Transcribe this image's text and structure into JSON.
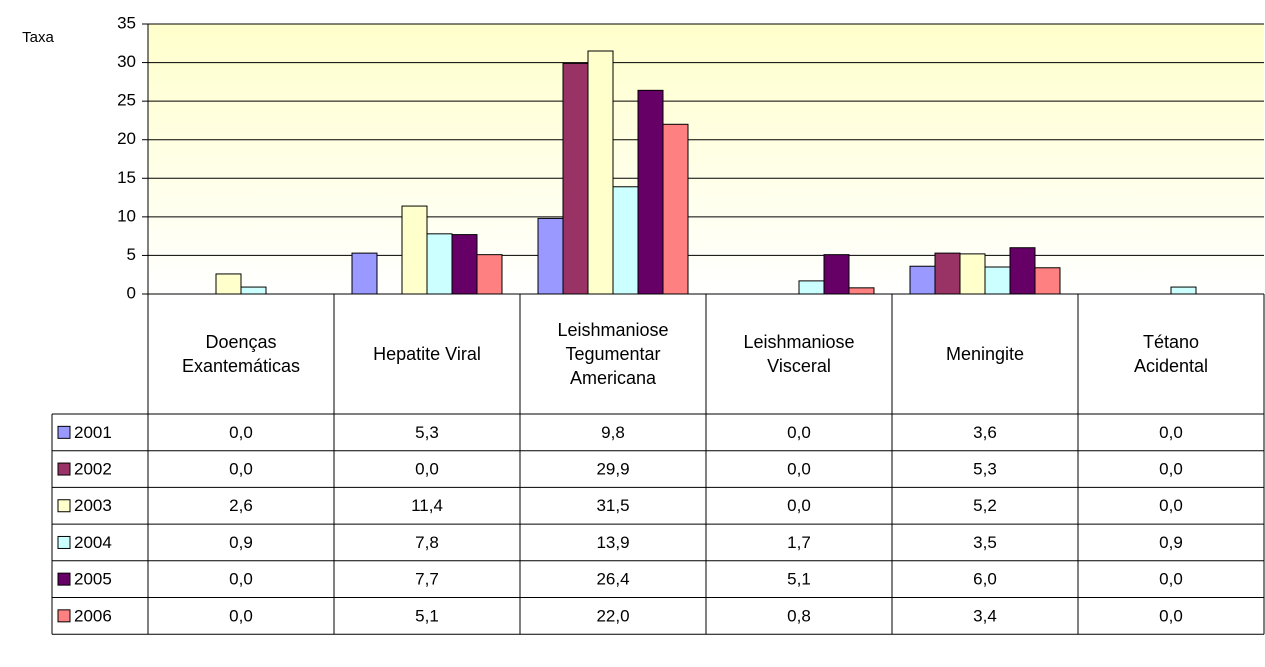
{
  "chart_data": {
    "type": "bar",
    "y_label": "Taxa",
    "categories": [
      "Doenças Exantemáticas",
      "Hepatite Viral",
      "Leishmaniose Tegumentar Americana",
      "Leishmaniose Visceral",
      "Meningite",
      "Tétano Acidental"
    ],
    "series": [
      {
        "name": "2001",
        "color": "#9999ff",
        "values": [
          0.0,
          5.3,
          9.8,
          0.0,
          3.6,
          0.0
        ],
        "value_labels": [
          "0,0",
          "5,3",
          "9,8",
          "0,0",
          "3,6",
          "0,0"
        ]
      },
      {
        "name": "2002",
        "color": "#993366",
        "values": [
          0.0,
          0.0,
          29.9,
          0.0,
          5.3,
          0.0
        ],
        "value_labels": [
          "0,0",
          "0,0",
          "29,9",
          "0,0",
          "5,3",
          "0,0"
        ]
      },
      {
        "name": "2003",
        "color": "#ffffcc",
        "values": [
          2.6,
          11.4,
          31.5,
          0.0,
          5.2,
          0.0
        ],
        "value_labels": [
          "2,6",
          "11,4",
          "31,5",
          "0,0",
          "5,2",
          "0,0"
        ]
      },
      {
        "name": "2004",
        "color": "#ccffff",
        "values": [
          0.9,
          7.8,
          13.9,
          1.7,
          3.5,
          0.9
        ],
        "value_labels": [
          "0,9",
          "7,8",
          "13,9",
          "1,7",
          "3,5",
          "0,9"
        ]
      },
      {
        "name": "2005",
        "color": "#660066",
        "values": [
          0.0,
          7.7,
          26.4,
          5.1,
          6.0,
          0.0
        ],
        "value_labels": [
          "0,0",
          "7,7",
          "26,4",
          "5,1",
          "6,0",
          "0,0"
        ]
      },
      {
        "name": "2006",
        "color": "#ff8080",
        "values": [
          0.0,
          5.1,
          22.0,
          0.8,
          3.4,
          0.0
        ],
        "value_labels": [
          "0,0",
          "5,1",
          "22,0",
          "0,8",
          "3,4",
          "0,0"
        ]
      }
    ],
    "ylim": [
      0,
      35
    ],
    "yticks": [
      0,
      5,
      10,
      15,
      20,
      25,
      30,
      35
    ],
    "grid": true
  }
}
